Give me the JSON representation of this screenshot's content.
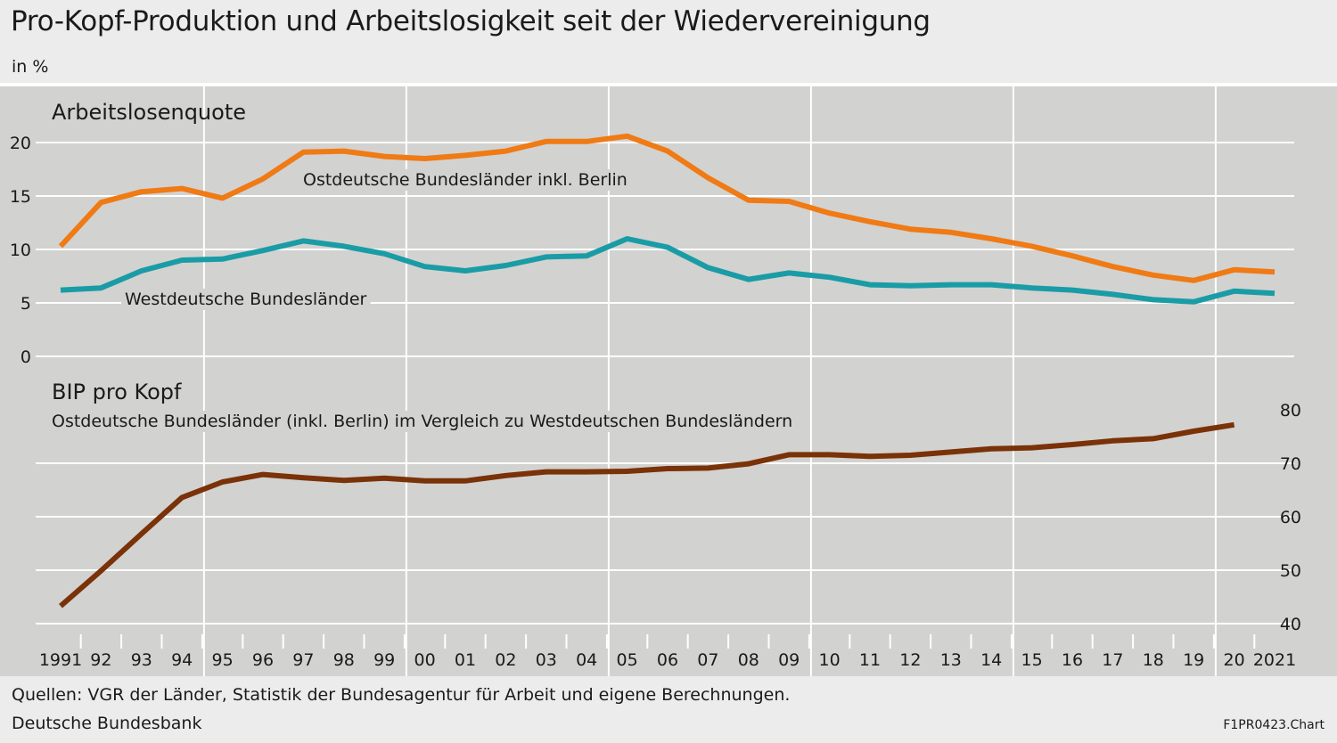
{
  "title": "Pro-Kopf-Produktion und Arbeitslosigkeit seit der Wiedervereinigung",
  "unit": "in %",
  "footer": {
    "source": "Quellen: VGR der Länder, Statistik der Bundesagentur für Arbeit und eigene Berechnungen.",
    "publisher": "Deutsche Bundesbank",
    "chart_id": "F1PR0423.Chart"
  },
  "colors": {
    "east": "#f07a14",
    "west": "#1a9ca6",
    "gdp": "#7a3208",
    "background": "#d2d2d0",
    "grid": "#ffffff"
  },
  "chart_data": [
    {
      "type": "line",
      "title": "Arbeitslosenquote",
      "x": [
        "1991",
        "92",
        "93",
        "94",
        "95",
        "96",
        "97",
        "98",
        "99",
        "00",
        "01",
        "02",
        "03",
        "04",
        "05",
        "06",
        "07",
        "08",
        "09",
        "10",
        "11",
        "12",
        "13",
        "14",
        "15",
        "16",
        "17",
        "18",
        "19",
        "20",
        "2021"
      ],
      "ylim": [
        0,
        20
      ],
      "yticks": [
        "0",
        "5",
        "10",
        "15",
        "20"
      ],
      "axis_side": "left",
      "grid": true,
      "series": [
        {
          "name": "Ostdeutsche Bundesländer inkl. Berlin",
          "color": "#f07a14",
          "values": [
            10.3,
            14.4,
            15.4,
            15.7,
            14.8,
            16.6,
            19.1,
            19.2,
            18.7,
            18.5,
            18.8,
            19.2,
            20.1,
            20.1,
            20.6,
            19.2,
            16.7,
            14.6,
            14.5,
            13.4,
            12.6,
            11.9,
            11.6,
            11.0,
            10.3,
            9.4,
            8.4,
            7.6,
            7.1,
            8.1,
            7.9
          ]
        },
        {
          "name": "Westdeutsche Bundesländer",
          "color": "#1a9ca6",
          "values": [
            6.2,
            6.4,
            8.0,
            9.0,
            9.1,
            9.9,
            10.8,
            10.3,
            9.6,
            8.4,
            8.0,
            8.5,
            9.3,
            9.4,
            11.0,
            10.2,
            8.3,
            7.2,
            7.8,
            7.4,
            6.7,
            6.6,
            6.7,
            6.7,
            6.4,
            6.2,
            5.8,
            5.3,
            5.1,
            6.1,
            5.9
          ]
        }
      ]
    },
    {
      "type": "line",
      "title": "BIP pro Kopf",
      "subtitle": "Ostdeutsche Bundesländer (inkl. Berlin) im Vergleich zu Westdeutschen Bundesländern",
      "x": [
        "1991",
        "92",
        "93",
        "94",
        "95",
        "96",
        "97",
        "98",
        "99",
        "00",
        "01",
        "02",
        "03",
        "04",
        "05",
        "06",
        "07",
        "08",
        "09",
        "10",
        "11",
        "12",
        "13",
        "14",
        "15",
        "16",
        "17",
        "18",
        "19",
        "20"
      ],
      "ylim": [
        40,
        80
      ],
      "yticks": [
        "40",
        "50",
        "60",
        "70",
        "80"
      ],
      "axis_side": "right",
      "grid": true,
      "series": [
        {
          "color": "#7a3208",
          "values": [
            43.3,
            49.9,
            56.8,
            63.6,
            66.5,
            67.9,
            67.3,
            66.8,
            67.2,
            66.7,
            66.7,
            67.7,
            68.4,
            68.4,
            68.5,
            69.0,
            69.1,
            69.9,
            71.6,
            71.6,
            71.3,
            71.5,
            72.1,
            72.7,
            72.9,
            73.5,
            74.2,
            74.6,
            76.0,
            77.2
          ]
        }
      ]
    }
  ]
}
